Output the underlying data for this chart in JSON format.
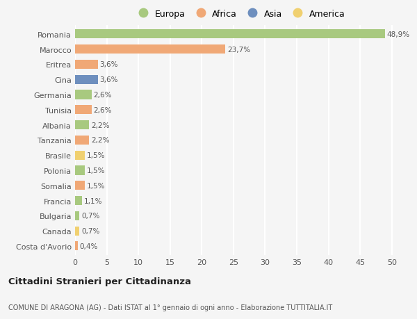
{
  "countries": [
    "Romania",
    "Marocco",
    "Eritrea",
    "Cina",
    "Germania",
    "Tunisia",
    "Albania",
    "Tanzania",
    "Brasile",
    "Polonia",
    "Somalia",
    "Francia",
    "Bulgaria",
    "Canada",
    "Costa d'Avorio"
  ],
  "values": [
    48.9,
    23.7,
    3.6,
    3.6,
    2.6,
    2.6,
    2.2,
    2.2,
    1.5,
    1.5,
    1.5,
    1.1,
    0.7,
    0.7,
    0.4
  ],
  "labels": [
    "48,9%",
    "23,7%",
    "3,6%",
    "3,6%",
    "2,6%",
    "2,6%",
    "2,2%",
    "2,2%",
    "1,5%",
    "1,5%",
    "1,5%",
    "1,1%",
    "0,7%",
    "0,7%",
    "0,4%"
  ],
  "colors": [
    "#a8c97f",
    "#f0a876",
    "#f0a876",
    "#6e8fbe",
    "#a8c97f",
    "#f0a876",
    "#a8c97f",
    "#f0a876",
    "#f0d070",
    "#a8c97f",
    "#f0a876",
    "#a8c97f",
    "#a8c97f",
    "#f0d070",
    "#f0a876"
  ],
  "legend": [
    {
      "label": "Europa",
      "color": "#a8c97f"
    },
    {
      "label": "Africa",
      "color": "#f0a876"
    },
    {
      "label": "Asia",
      "color": "#6e8fbe"
    },
    {
      "label": "America",
      "color": "#f0d070"
    }
  ],
  "title": "Cittadini Stranieri per Cittadinanza",
  "subtitle": "COMUNE DI ARAGONA (AG) - Dati ISTAT al 1° gennaio di ogni anno - Elaborazione TUTTITALIA.IT",
  "xlim": [
    0,
    52
  ],
  "xticks": [
    0,
    5,
    10,
    15,
    20,
    25,
    30,
    35,
    40,
    45,
    50
  ],
  "bg_color": "#f5f5f5",
  "grid_color": "#ffffff"
}
